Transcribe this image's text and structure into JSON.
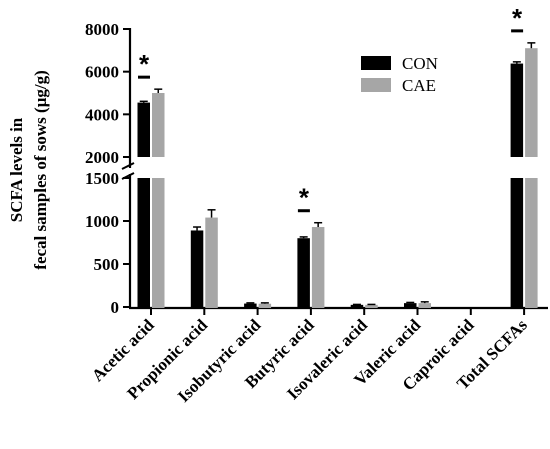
{
  "chart_data": {
    "type": "bar",
    "ylabel_lines": [
      "SCFA levels in",
      "fecal samples of sows (μg/g)"
    ],
    "categories": [
      "Acetic acid",
      "Propionic acid",
      "Isobutyric acid",
      "Butyric acid",
      "Isovaleric acid",
      "Valeric acid",
      "Caproic acid",
      "Total SCFAs"
    ],
    "series": [
      {
        "name": "CON",
        "color": "#000000",
        "values": [
          4550,
          890,
          40,
          800,
          25,
          45,
          0,
          6380
        ],
        "errors": [
          60,
          40,
          8,
          15,
          5,
          8,
          0,
          80
        ]
      },
      {
        "name": "CAE",
        "color": "#a6a6a6",
        "values": [
          5000,
          1040,
          38,
          930,
          25,
          45,
          0,
          7100
        ],
        "errors": [
          180,
          90,
          10,
          50,
          5,
          15,
          0,
          250
        ]
      }
    ],
    "y_axis": {
      "lower_segment": {
        "range": [
          0,
          1500
        ],
        "ticks": [
          0,
          500,
          1000,
          1500
        ]
      },
      "upper_segment": {
        "range": [
          2000,
          8000
        ],
        "ticks": [
          2000,
          4000,
          6000,
          8000
        ]
      },
      "tick_labels": [
        "0",
        "500",
        "1000",
        "1500",
        "2000",
        "4000",
        "6000",
        "8000"
      ],
      "broken_axis": true
    },
    "significance": [
      {
        "category": "Acetic acid",
        "label": "*"
      },
      {
        "category": "Butyric acid",
        "label": "*"
      },
      {
        "category": "Total SCFAs",
        "label": "*"
      }
    ],
    "legend_position": "top-right",
    "grid": false
  }
}
